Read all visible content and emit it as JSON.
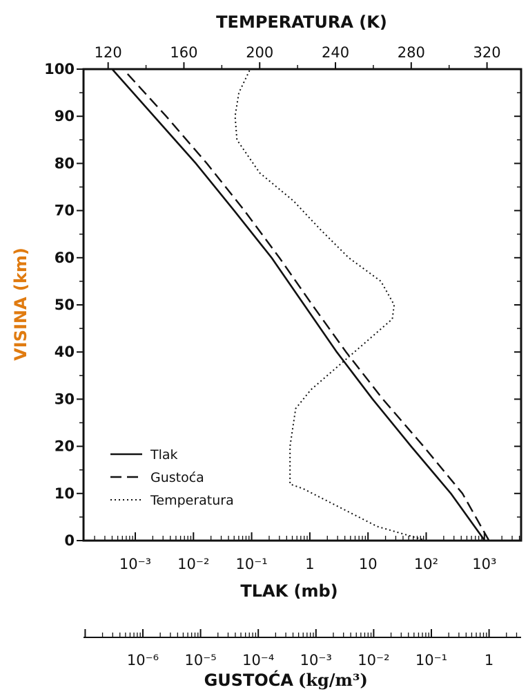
{
  "chart_data": {
    "type": "line",
    "title": "",
    "top_axis": {
      "label": "TEMPERATURA (K)",
      "ticks": [
        "120",
        "160",
        "200",
        "240",
        "280",
        "320"
      ],
      "range": [
        107,
        338
      ]
    },
    "left_axis": {
      "label": "VISINA (km)",
      "ticks": [
        "0",
        "10",
        "20",
        "30",
        "40",
        "50",
        "60",
        "70",
        "80",
        "90",
        "100"
      ],
      "range": [
        0,
        100
      ]
    },
    "bottom_axis": {
      "label": "TLAK (mb)",
      "ticks": [
        "10⁻³",
        "10⁻²",
        "10⁻¹",
        "1",
        "10",
        "10²",
        "10³"
      ],
      "scale": "log"
    },
    "density_axis": {
      "label": "GUSTOĆA",
      "unit": "(kg/m³)",
      "ticks": [
        "10⁻⁶",
        "10⁻⁵",
        "10⁻⁴",
        "10⁻³",
        "10⁻²",
        "10⁻¹",
        "1"
      ],
      "scale": "log"
    },
    "legend": {
      "position": "lower-left",
      "items": [
        {
          "label": "Tlak",
          "style": "solid"
        },
        {
          "label": "Gustoća",
          "style": "dashed"
        },
        {
          "label": "Temperatura",
          "style": "dotted"
        }
      ]
    },
    "series": [
      {
        "name": "Tlak",
        "axis": "pressure_mb",
        "points": [
          [
            1013,
            0
          ],
          [
            265,
            10
          ],
          [
            55,
            20
          ],
          [
            12,
            30
          ],
          [
            2.9,
            40
          ],
          [
            0.8,
            50
          ],
          [
            0.22,
            60
          ],
          [
            0.05,
            70
          ],
          [
            0.011,
            80
          ],
          [
            0.0021,
            90
          ],
          [
            0.0004,
            100
          ]
        ]
      },
      {
        "name": "Gustoća",
        "axis": "pressure_mb",
        "points": [
          [
            1200,
            0
          ],
          [
            420,
            10
          ],
          [
            90,
            20
          ],
          [
            18,
            30
          ],
          [
            4.2,
            40
          ],
          [
            1.1,
            50
          ],
          [
            0.3,
            60
          ],
          [
            0.075,
            70
          ],
          [
            0.017,
            80
          ],
          [
            0.0034,
            90
          ],
          [
            0.00062,
            100
          ]
        ]
      },
      {
        "name": "Temperatura",
        "axis": "temperature_K",
        "points": [
          [
            288,
            0
          ],
          [
            262,
            3
          ],
          [
            223,
            11
          ],
          [
            216,
            12
          ],
          [
            216,
            20
          ],
          [
            219,
            28
          ],
          [
            227,
            32
          ],
          [
            250,
            40
          ],
          [
            270,
            47
          ],
          [
            271,
            50
          ],
          [
            264,
            55
          ],
          [
            247,
            60
          ],
          [
            232,
            66
          ],
          [
            218,
            72
          ],
          [
            200,
            78
          ],
          [
            188,
            85
          ],
          [
            187,
            90
          ],
          [
            189,
            95
          ],
          [
            195,
            100
          ]
        ]
      }
    ],
    "colors": {
      "axis_title": "#e07b10",
      "ink": "#111111"
    }
  }
}
